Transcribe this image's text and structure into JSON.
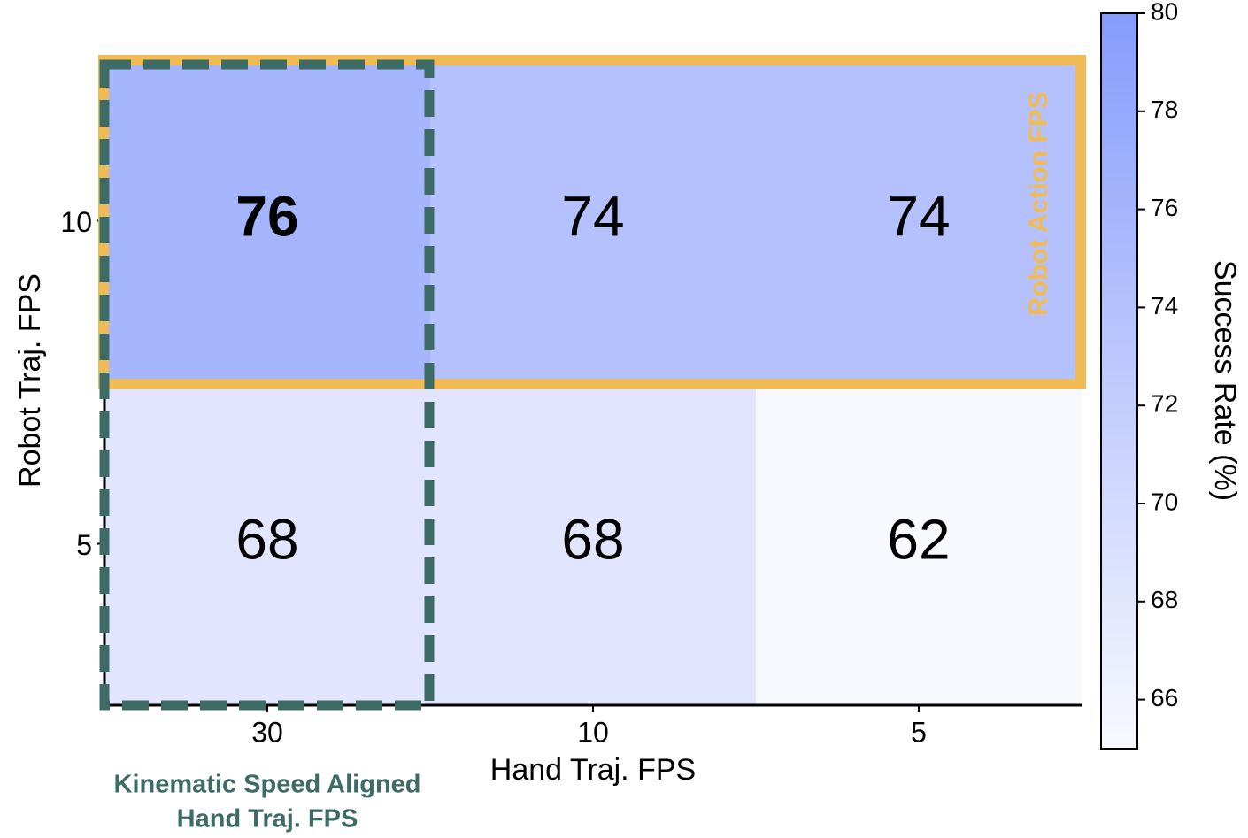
{
  "chart_data": {
    "type": "heatmap",
    "x_label": "Hand Traj. FPS",
    "y_label": "Robot Traj. FPS",
    "x_categories": [
      "30",
      "10",
      "5"
    ],
    "y_categories": [
      "10",
      "5"
    ],
    "values": [
      [
        76,
        74,
        74
      ],
      [
        68,
        68,
        62
      ]
    ],
    "bold_max": true,
    "colormap": [
      "#f8f9ff",
      "#869cfb"
    ],
    "colorbar_label": "Success Rate (%)",
    "clim": [
      65,
      80
    ],
    "cticks": [
      66,
      68,
      70,
      72,
      74,
      76,
      78,
      80
    ],
    "highlight_row": {
      "label": "Robot Action FPS",
      "color": "#f0bb55"
    },
    "highlight_column": {
      "label": [
        "Kinematic Speed Aligned",
        "Hand Traj. FPS"
      ],
      "color": "#3d6b66"
    }
  }
}
